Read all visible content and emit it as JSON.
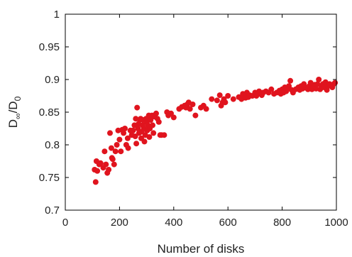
{
  "chart_data": {
    "type": "scatter",
    "xlabel": "Number of disks",
    "ylabel": {
      "D": "D",
      "inf": "∞",
      "slash": "/D",
      "zero": "0"
    },
    "xlim": [
      0,
      1000
    ],
    "ylim": [
      0.7,
      1
    ],
    "xticks": [
      "0",
      "200",
      "400",
      "600",
      "800",
      "1000"
    ],
    "yticks": [
      "0.7",
      "0.75",
      "0.8",
      "0.85",
      "0.9",
      "0.95",
      "1"
    ],
    "grid": false,
    "marker_color": "#e0141e",
    "points": [
      [
        108,
        0.762
      ],
      [
        112,
        0.743
      ],
      [
        115,
        0.775
      ],
      [
        118,
        0.76
      ],
      [
        125,
        0.77
      ],
      [
        130,
        0.772
      ],
      [
        140,
        0.765
      ],
      [
        145,
        0.79
      ],
      [
        150,
        0.77
      ],
      [
        155,
        0.757
      ],
      [
        160,
        0.762
      ],
      [
        165,
        0.818
      ],
      [
        170,
        0.795
      ],
      [
        172,
        0.78
      ],
      [
        175,
        0.778
      ],
      [
        180,
        0.77
      ],
      [
        185,
        0.79
      ],
      [
        190,
        0.8
      ],
      [
        195,
        0.822
      ],
      [
        200,
        0.808
      ],
      [
        205,
        0.79
      ],
      [
        210,
        0.823
      ],
      [
        215,
        0.818
      ],
      [
        220,
        0.825
      ],
      [
        225,
        0.8
      ],
      [
        230,
        0.81
      ],
      [
        232,
        0.795
      ],
      [
        240,
        0.822
      ],
      [
        245,
        0.815
      ],
      [
        250,
        0.822
      ],
      [
        255,
        0.83
      ],
      [
        258,
        0.813
      ],
      [
        260,
        0.84
      ],
      [
        262,
        0.802
      ],
      [
        265,
        0.857
      ],
      [
        268,
        0.825
      ],
      [
        270,
        0.832
      ],
      [
        272,
        0.818
      ],
      [
        275,
        0.838
      ],
      [
        278,
        0.84
      ],
      [
        280,
        0.81
      ],
      [
        282,
        0.82
      ],
      [
        285,
        0.83
      ],
      [
        288,
        0.838
      ],
      [
        290,
        0.825
      ],
      [
        292,
        0.805
      ],
      [
        295,
        0.815
      ],
      [
        298,
        0.84
      ],
      [
        300,
        0.835
      ],
      [
        302,
        0.822
      ],
      [
        305,
        0.83
      ],
      [
        308,
        0.845
      ],
      [
        310,
        0.812
      ],
      [
        312,
        0.825
      ],
      [
        315,
        0.838
      ],
      [
        320,
        0.845
      ],
      [
        322,
        0.83
      ],
      [
        325,
        0.818
      ],
      [
        330,
        0.843
      ],
      [
        335,
        0.848
      ],
      [
        340,
        0.84
      ],
      [
        345,
        0.835
      ],
      [
        350,
        0.815
      ],
      [
        355,
        0.815
      ],
      [
        365,
        0.815
      ],
      [
        375,
        0.85
      ],
      [
        380,
        0.845
      ],
      [
        390,
        0.848
      ],
      [
        400,
        0.842
      ],
      [
        420,
        0.855
      ],
      [
        430,
        0.858
      ],
      [
        440,
        0.86
      ],
      [
        445,
        0.857
      ],
      [
        450,
        0.862
      ],
      [
        455,
        0.865
      ],
      [
        460,
        0.855
      ],
      [
        470,
        0.862
      ],
      [
        480,
        0.845
      ],
      [
        500,
        0.857
      ],
      [
        510,
        0.86
      ],
      [
        520,
        0.855
      ],
      [
        540,
        0.87
      ],
      [
        560,
        0.868
      ],
      [
        570,
        0.876
      ],
      [
        575,
        0.86
      ],
      [
        580,
        0.865
      ],
      [
        585,
        0.87
      ],
      [
        590,
        0.865
      ],
      [
        600,
        0.875
      ],
      [
        620,
        0.87
      ],
      [
        640,
        0.873
      ],
      [
        650,
        0.87
      ],
      [
        655,
        0.878
      ],
      [
        660,
        0.875
      ],
      [
        665,
        0.872
      ],
      [
        670,
        0.88
      ],
      [
        675,
        0.873
      ],
      [
        680,
        0.876
      ],
      [
        690,
        0.875
      ],
      [
        700,
        0.88
      ],
      [
        705,
        0.875
      ],
      [
        710,
        0.878
      ],
      [
        715,
        0.882
      ],
      [
        720,
        0.878
      ],
      [
        725,
        0.876
      ],
      [
        730,
        0.88
      ],
      [
        740,
        0.882
      ],
      [
        750,
        0.88
      ],
      [
        760,
        0.885
      ],
      [
        770,
        0.878
      ],
      [
        780,
        0.88
      ],
      [
        790,
        0.883
      ],
      [
        795,
        0.878
      ],
      [
        800,
        0.885
      ],
      [
        805,
        0.88
      ],
      [
        810,
        0.888
      ],
      [
        815,
        0.882
      ],
      [
        820,
        0.886
      ],
      [
        825,
        0.89
      ],
      [
        830,
        0.898
      ],
      [
        835,
        0.884
      ],
      [
        840,
        0.88
      ],
      [
        850,
        0.885
      ],
      [
        860,
        0.888
      ],
      [
        865,
        0.884
      ],
      [
        870,
        0.89
      ],
      [
        875,
        0.886
      ],
      [
        880,
        0.893
      ],
      [
        885,
        0.888
      ],
      [
        890,
        0.887
      ],
      [
        895,
        0.885
      ],
      [
        900,
        0.89
      ],
      [
        905,
        0.895
      ],
      [
        910,
        0.885
      ],
      [
        915,
        0.888
      ],
      [
        920,
        0.892
      ],
      [
        925,
        0.886
      ],
      [
        930,
        0.893
      ],
      [
        935,
        0.9
      ],
      [
        940,
        0.885
      ],
      [
        945,
        0.89
      ],
      [
        950,
        0.893
      ],
      [
        955,
        0.888
      ],
      [
        960,
        0.896
      ],
      [
        965,
        0.884
      ],
      [
        970,
        0.89
      ],
      [
        975,
        0.893
      ],
      [
        985,
        0.888
      ],
      [
        990,
        0.893
      ],
      [
        995,
        0.895
      ]
    ]
  }
}
